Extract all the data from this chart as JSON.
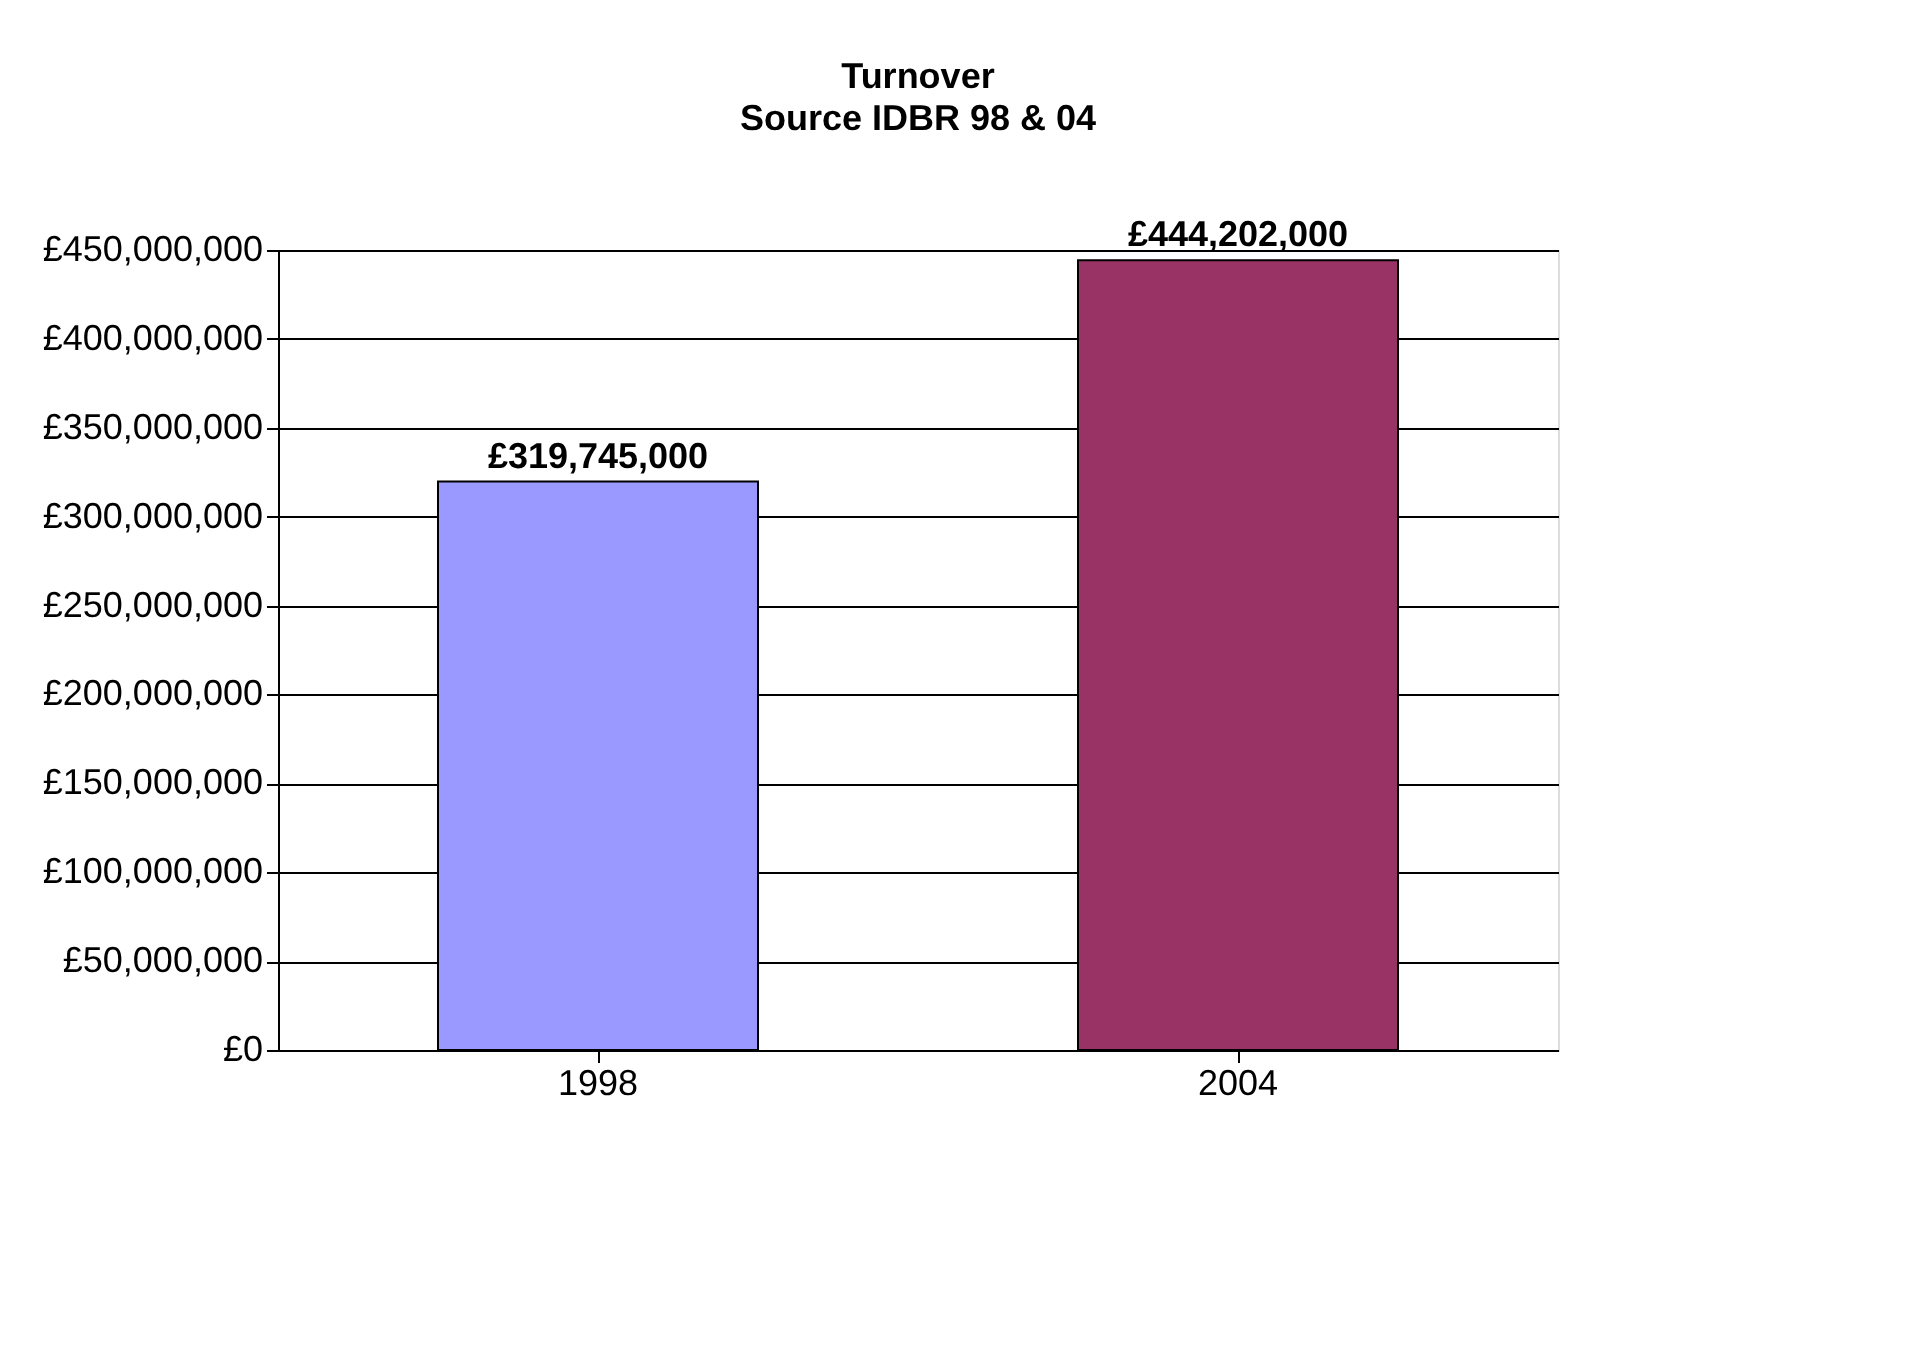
{
  "chart_data": {
    "type": "bar",
    "title": "Turnover",
    "subtitle": "Source IDBR 98 & 04",
    "categories": [
      "1998",
      "2004"
    ],
    "values": [
      319745000,
      444202000
    ],
    "colors": [
      "#9999ff",
      "#993366"
    ],
    "value_labels": [
      "£319,745,000",
      "£444,202,000"
    ],
    "ylim": [
      0,
      450000000
    ],
    "yticks": [
      {
        "value": 0,
        "label": "£0"
      },
      {
        "value": 50000000,
        "label": "£50,000,000"
      },
      {
        "value": 100000000,
        "label": "£100,000,000"
      },
      {
        "value": 150000000,
        "label": "£150,000,000"
      },
      {
        "value": 200000000,
        "label": "£200,000,000"
      },
      {
        "value": 250000000,
        "label": "£250,000,000"
      },
      {
        "value": 300000000,
        "label": "£300,000,000"
      },
      {
        "value": 350000000,
        "label": "£350,000,000"
      },
      {
        "value": 400000000,
        "label": "£400,000,000"
      },
      {
        "value": 450000000,
        "label": "£450,000,000"
      }
    ],
    "grid": "y",
    "legend": false
  }
}
